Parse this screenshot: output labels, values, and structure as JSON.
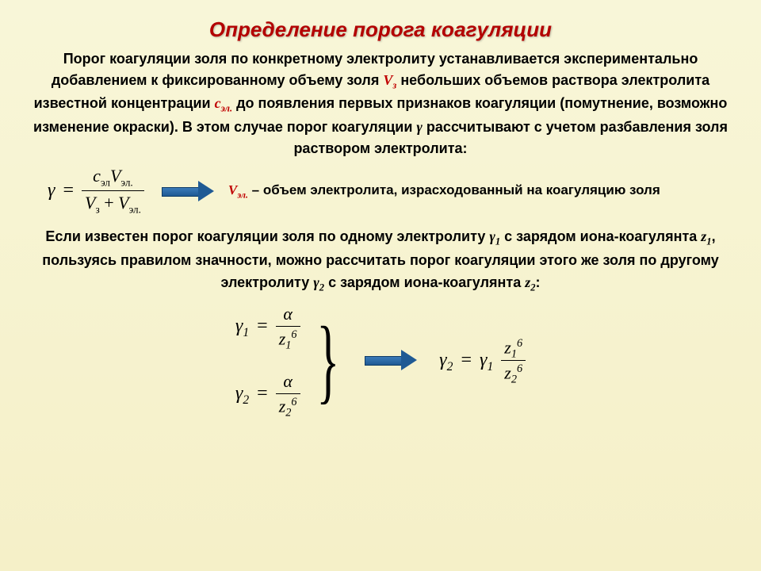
{
  "colors": {
    "title": "#b30000",
    "accent": "#c00000",
    "arrow_fill": "#1f5a94",
    "bg_top": "#f8f6d8",
    "bg_bottom": "#f5f0c8",
    "text": "#000000"
  },
  "typography": {
    "title_fontsize": 26,
    "body_fontsize": 18,
    "formula_fontsize": 24,
    "font_family_body": "Arial",
    "font_family_math": "Times New Roman"
  },
  "title": "Определение порога коагуляции",
  "p1_a": "Порог коагуляции золя по конкретному электролиту устанавливается экспериментально добавлением к фиксированному объему золя ",
  "p1_vz": "V",
  "p1_vz_sub": "з",
  "p1_b": " небольших объемов раствора электролита известной концентрации ",
  "p1_c": "с",
  "p1_c_sub": "эл.",
  "p1_d": " до появления первых признаков коагуляции (помутнение, возможно изменение окраски). В этом случае порог коагуляции ",
  "p1_gamma": "γ",
  "p1_e": " рассчитывают с учетом разбавления золя раствором электролита:",
  "formula_main": {
    "lhs": "γ",
    "eq": "=",
    "num_c": "c",
    "num_c_sub": "эл",
    "num_v": "V",
    "num_v_sub": "эл.",
    "den_v1": "V",
    "den_v1_sub": "з",
    "den_plus": "+",
    "den_v2": "V",
    "den_v2_sub": "эл."
  },
  "explain_v": "V",
  "explain_v_sub": "эл.",
  "explain_text": " – объем электролита, израсходованный на коагуляцию золя",
  "p2_a": "Если известен порог коагуляции золя по одному электролиту ",
  "p2_g1": "γ",
  "p2_g1_sub": "1",
  "p2_b": " с зарядом иона-коагулянта ",
  "p2_z1": "z",
  "p2_z1_sub": "1",
  "p2_c": ", пользуясь правилом значности, можно рассчитать порог коагуляции этого же золя по другому электролиту ",
  "p2_g2": "γ",
  "p2_g2_sub": "2",
  "p2_d": " с зарядом иона-коагулянта ",
  "p2_z2": "z",
  "p2_z2_sub": "2",
  "p2_e": ":",
  "f_small_1": {
    "lhs": "γ",
    "lhs_sub": "1",
    "eq": "=",
    "num": "α",
    "den_base": "z",
    "den_sub": "1",
    "den_sup": "6"
  },
  "f_small_2": {
    "lhs": "γ",
    "lhs_sub": "2",
    "eq": "=",
    "num": "α",
    "den_base": "z",
    "den_sub": "2",
    "den_sup": "6"
  },
  "f_result": {
    "lhs": "γ",
    "lhs_sub": "2",
    "eq": "=",
    "rhs1": "γ",
    "rhs1_sub": "1",
    "num_base": "z",
    "num_sub": "1",
    "num_sup": "6",
    "den_base": "z",
    "den_sub": "2",
    "den_sup": "6"
  }
}
